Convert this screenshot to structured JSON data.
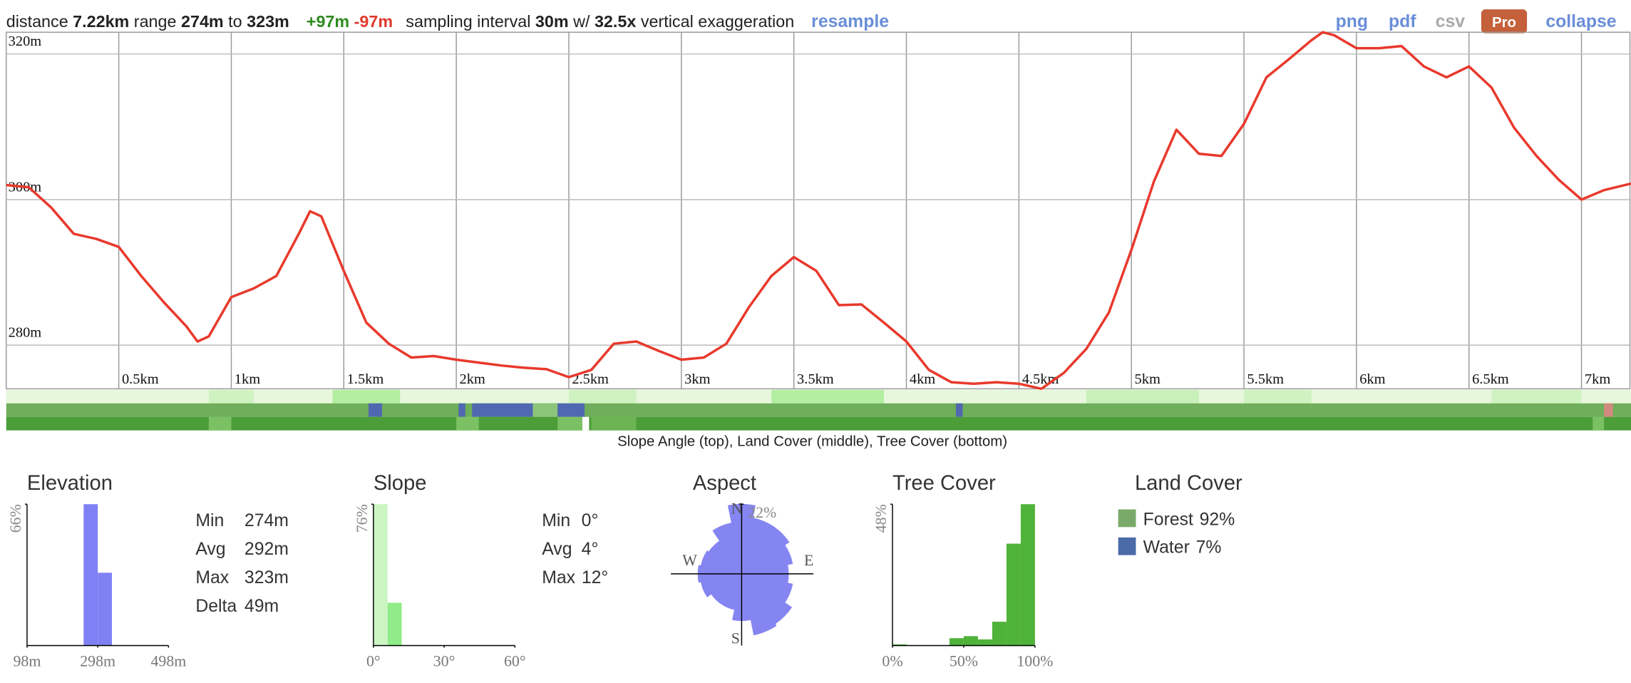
{
  "header": {
    "distance_label": "distance",
    "distance": "7.22km",
    "range_label": "range",
    "range_min": "274m",
    "range_to": "to",
    "range_max": "323m",
    "gain": "+97m",
    "loss": "-97m",
    "interval_label": "sampling interval",
    "interval": "30m",
    "exaggeration_label": "w/",
    "exaggeration": "32.5x",
    "exaggeration_suffix": "vertical exaggeration",
    "resample": "resample"
  },
  "toolbar": {
    "png": "png",
    "pdf": "pdf",
    "csv": "csv",
    "pro": "Pro",
    "collapse": "collapse"
  },
  "chart_data": [
    {
      "type": "line",
      "xlim": [
        0,
        7.22
      ],
      "ylim": [
        274,
        323
      ],
      "grid": true,
      "xticks": [
        {
          "value": 0.5,
          "label": "0.5km"
        },
        {
          "value": 1,
          "label": "1km"
        },
        {
          "value": 1.5,
          "label": "1.5km"
        },
        {
          "value": 2,
          "label": "2km"
        },
        {
          "value": 2.5,
          "label": "2.5km"
        },
        {
          "value": 3,
          "label": "3km"
        },
        {
          "value": 3.5,
          "label": "3.5km"
        },
        {
          "value": 4,
          "label": "4km"
        },
        {
          "value": 4.5,
          "label": "4.5km"
        },
        {
          "value": 5,
          "label": "5km"
        },
        {
          "value": 5.5,
          "label": "5.5km"
        },
        {
          "value": 6,
          "label": "6km"
        },
        {
          "value": 6.5,
          "label": "6.5km"
        },
        {
          "value": 7,
          "label": "7km"
        }
      ],
      "yticks": [
        {
          "value": 280,
          "label": "280m"
        },
        {
          "value": 300,
          "label": "300m"
        },
        {
          "value": 320,
          "label": "320m"
        }
      ],
      "x": [
        0,
        0.1,
        0.2,
        0.3,
        0.4,
        0.5,
        0.6,
        0.7,
        0.8,
        0.85,
        0.9,
        1.0,
        1.1,
        1.2,
        1.3,
        1.35,
        1.4,
        1.5,
        1.6,
        1.7,
        1.8,
        1.9,
        2.0,
        2.1,
        2.2,
        2.3,
        2.4,
        2.5,
        2.6,
        2.7,
        2.8,
        2.9,
        3.0,
        3.1,
        3.2,
        3.3,
        3.4,
        3.5,
        3.6,
        3.7,
        3.8,
        3.9,
        4.0,
        4.1,
        4.2,
        4.3,
        4.4,
        4.5,
        4.6,
        4.7,
        4.8,
        4.9,
        5.0,
        5.1,
        5.2,
        5.3,
        5.4,
        5.5,
        5.6,
        5.7,
        5.8,
        5.85,
        5.9,
        6.0,
        6.1,
        6.2,
        6.3,
        6.4,
        6.5,
        6.6,
        6.7,
        6.8,
        6.9,
        7.0,
        7.1,
        7.22
      ],
      "series": [
        {
          "color": "#e8392c",
          "values": [
            302.0,
            301.7,
            298.9,
            295.3,
            294.6,
            293.5,
            289.5,
            285.9,
            282.6,
            280.5,
            281.2,
            286.6,
            287.8,
            289.5,
            295.3,
            298.4,
            297.7,
            290.2,
            283.1,
            280.2,
            278.3,
            278.5,
            278.0,
            277.6,
            277.2,
            276.9,
            276.7,
            275.6,
            276.6,
            280.2,
            280.5,
            279.2,
            278.0,
            278.3,
            280.2,
            285.2,
            289.5,
            292.1,
            290.2,
            285.5,
            285.6,
            283.1,
            280.5,
            276.6,
            274.9,
            274.7,
            274.9,
            274.7,
            274.0,
            276.2,
            279.5,
            284.5,
            293.1,
            302.5,
            309.6,
            306.3,
            306.0,
            310.4,
            316.8,
            319.3,
            321.9,
            323.0,
            322.6,
            320.8,
            320.8,
            321.1,
            318.3,
            316.8,
            318.3,
            315.4,
            309.9,
            306.0,
            302.7,
            300.0,
            301.3,
            302.2
          ]
        }
      ]
    },
    {
      "type": "histogram",
      "title": "Elevation",
      "bins": [
        258,
        298,
        338
      ],
      "values": [
        66,
        34
      ],
      "color": "#8080f5",
      "xlim": [
        98,
        498
      ],
      "ylim": [
        0,
        66
      ],
      "xticks": [
        {
          "value": 98,
          "label": "98m"
        },
        {
          "value": 298,
          "label": "298m"
        },
        {
          "value": 498,
          "label": "498m"
        }
      ],
      "yticks": [
        {
          "value": 66,
          "label": "66%"
        }
      ]
    },
    {
      "type": "histogram",
      "title": "Slope",
      "bins": [
        0,
        6,
        12
      ],
      "values": [
        76,
        23
      ],
      "colors": [
        "#ccf5c4",
        "#90ec88"
      ],
      "xlim": [
        0,
        60
      ],
      "ylim": [
        0,
        76
      ],
      "xticks": [
        {
          "value": 0,
          "label": "0°"
        },
        {
          "value": 30,
          "label": "30°"
        },
        {
          "value": 60,
          "label": "60°"
        }
      ],
      "yticks": [
        {
          "value": 76,
          "label": "76%"
        }
      ]
    },
    {
      "type": "polar_bar",
      "title": "Aspect",
      "color": "#8585f2",
      "rlim": [
        0,
        22
      ],
      "rticks": [
        {
          "value": 22,
          "label": "22%"
        }
      ],
      "compass": [
        "N",
        "E",
        "S",
        "W"
      ],
      "angles": [
        0,
        22.5,
        45,
        67.5,
        90,
        112.5,
        135,
        157.5,
        180,
        202.5,
        225,
        247.5,
        270,
        292.5,
        315,
        337.5
      ],
      "values": [
        22,
        18,
        18,
        16.4,
        14.8,
        16.4,
        19,
        19.7,
        14.8,
        11.5,
        11.5,
        13.1,
        13.8,
        13.1,
        12.5,
        16.4
      ]
    },
    {
      "type": "histogram",
      "title": "Tree Cover",
      "bins": [
        0,
        10,
        20,
        30,
        40,
        50,
        60,
        70,
        80,
        90,
        100
      ],
      "values": [
        0.4,
        0,
        0,
        0,
        2.5,
        3.2,
        2.1,
        8.1,
        34.6,
        48
      ],
      "color": "#4fb33a",
      "xlim": [
        0,
        100
      ],
      "ylim": [
        0,
        48
      ],
      "xticks": [
        {
          "value": 0,
          "label": "0%"
        },
        {
          "value": 50,
          "label": "50%"
        },
        {
          "value": 100,
          "label": "100%"
        }
      ],
      "yticks": [
        {
          "value": 48,
          "label": "48%"
        }
      ]
    }
  ],
  "strips": {
    "caption": "Slope Angle (top), Land Cover (middle), Tree Cover (bottom)",
    "xlim": [
      0,
      7.22
    ],
    "rows": [
      {
        "color": "#e6f7dc",
        "segments": [
          {
            "start": 0.9,
            "end": 1.1,
            "color": "#d0f2c0"
          },
          {
            "start": 1.45,
            "end": 1.75,
            "color": "#b4eea0"
          },
          {
            "start": 2.5,
            "end": 2.8,
            "color": "#d0f2c0"
          },
          {
            "start": 3.4,
            "end": 3.9,
            "color": "#b4eea0"
          },
          {
            "start": 4.8,
            "end": 5.3,
            "color": "#c8f0b8"
          },
          {
            "start": 5.5,
            "end": 5.8,
            "color": "#d0f2c0"
          },
          {
            "start": 6.6,
            "end": 7.0,
            "color": "#d0f2c0"
          }
        ]
      },
      {
        "color": "#6fae5a",
        "segments": [
          {
            "start": 1.61,
            "end": 1.67,
            "color": "#5068b0"
          },
          {
            "start": 2.01,
            "end": 2.04,
            "color": "#5068b0"
          },
          {
            "start": 2.07,
            "end": 2.34,
            "color": "#5068b0"
          },
          {
            "start": 2.34,
            "end": 2.45,
            "color": "#8cc47a"
          },
          {
            "start": 2.45,
            "end": 2.57,
            "color": "#5068b0"
          },
          {
            "start": 4.22,
            "end": 4.25,
            "color": "#5068b0"
          },
          {
            "start": 7.1,
            "end": 7.14,
            "color": "#d08a80"
          }
        ]
      },
      {
        "color": "#4c9e38",
        "segments": [
          {
            "start": 0.9,
            "end": 1.0,
            "color": "#7cc064"
          },
          {
            "start": 2.0,
            "end": 2.1,
            "color": "#7cc064"
          },
          {
            "start": 2.45,
            "end": 2.56,
            "color": "#7cc064"
          },
          {
            "start": 2.56,
            "end": 2.59,
            "color": "#ffffff"
          },
          {
            "start": 2.6,
            "end": 2.8,
            "color": "#6cb454"
          },
          {
            "start": 7.05,
            "end": 7.1,
            "color": "#7cc064"
          }
        ]
      }
    ]
  },
  "elevation_stats": {
    "rows": [
      [
        "Min",
        "274m"
      ],
      [
        "Avg",
        "292m"
      ],
      [
        "Max",
        "323m"
      ],
      [
        "Delta",
        "49m"
      ]
    ]
  },
  "slope_stats": {
    "rows": [
      [
        "Min",
        "0°"
      ],
      [
        "Avg",
        "4°"
      ],
      [
        "Max",
        "12°"
      ]
    ]
  },
  "land_cover": {
    "title": "Land Cover",
    "items": [
      {
        "name": "Forest",
        "percent": "92%",
        "color": "#7aaa6a"
      },
      {
        "name": "Water",
        "percent": "7%",
        "color": "#4a6aa8"
      }
    ]
  }
}
